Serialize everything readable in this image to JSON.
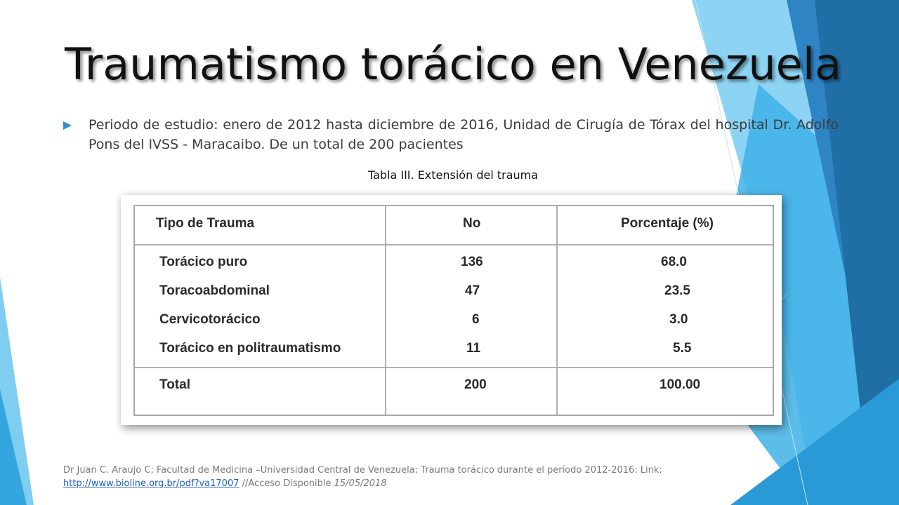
{
  "slide": {
    "title": "Traumatismo torácico en Venezuela",
    "bullet": "Periodo de estudio: enero de 2012 hasta diciembre de 2016, Unidad de Cirugía de Tórax del hospital Dr. Adolfo Pons del IVSS - Maracaibo. De un total de 200 pacientes",
    "caption": "Tabla III. Extensión del trauma"
  },
  "table": {
    "headers": [
      "Tipo de Trauma",
      "No",
      "Porcentaje (%)"
    ],
    "rows": [
      [
        "Torácico puro",
        "136",
        "68.0"
      ],
      [
        "Toracoabdominal",
        "47",
        "23.5"
      ],
      [
        "Cervicotorácico",
        "6",
        "3.0"
      ],
      [
        "Torácico en politraumatismo",
        "11",
        "5.5"
      ]
    ],
    "total": [
      "Total",
      "200",
      "100.00"
    ]
  },
  "footer": {
    "citation": "Dr Juan C. Araujo C; Facultad de Medicina –Universidad Central de Venezuela; Trauma torácico durante el período 2012-2016: Link:",
    "link": "http://www.bioline.org.br/pdf?va17007",
    "access": " //Acceso Disponible ",
    "date": "15/05/2018"
  },
  "colors": {
    "accent": "#2a8fd0",
    "light_blue": "#8fd3f2",
    "mid_blue": "#3aa9e0",
    "dark_blue": "#1f6fa6"
  }
}
